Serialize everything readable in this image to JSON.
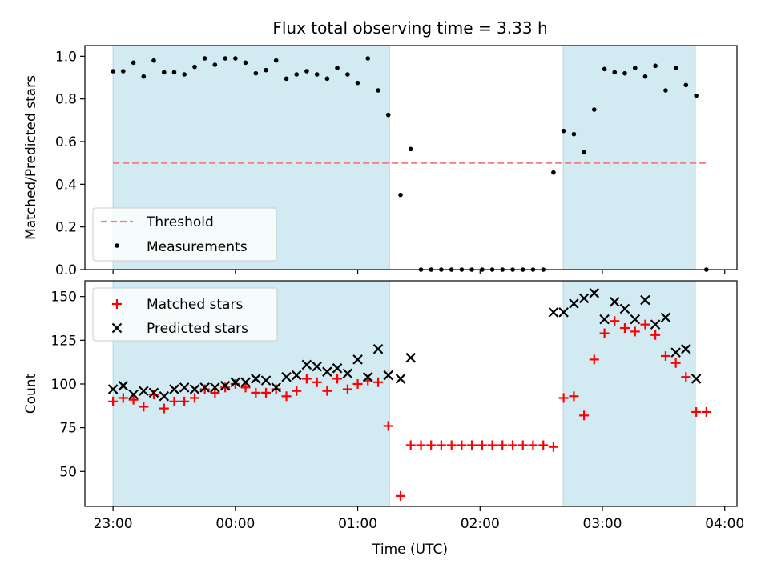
{
  "title": "Flux total observing time = 3.33 h",
  "xlabel": "Time (UTC)",
  "x_unit": "hours relative to 00:00 UTC",
  "xticks": [
    {
      "value": -1,
      "label": "23:00"
    },
    {
      "value": 0,
      "label": "00:00"
    },
    {
      "value": 1,
      "label": "01:00"
    },
    {
      "value": 2,
      "label": "02:00"
    },
    {
      "value": 3,
      "label": "03:00"
    },
    {
      "value": 4,
      "label": "04:00"
    }
  ],
  "xlim": [
    -1.23,
    4.1
  ],
  "shaded_intervals": [
    [
      -1.0,
      1.26
    ],
    [
      2.68,
      3.76
    ]
  ],
  "colors": {
    "shade": "#add8e6",
    "threshold": "#f08080",
    "measurement": "#000000",
    "matched": "#ff0000",
    "predicted": "#000000"
  },
  "chart_data": [
    {
      "type": "scatter",
      "ylabel": "Matched/Predicted stars",
      "ylim": [
        0,
        1.05
      ],
      "yticks": [
        {
          "value": 0.0,
          "label": "0.0"
        },
        {
          "value": 0.2,
          "label": "0.2"
        },
        {
          "value": 0.4,
          "label": "0.4"
        },
        {
          "value": 0.6,
          "label": "0.6"
        },
        {
          "value": 0.8,
          "label": "0.8"
        },
        {
          "value": 1.0,
          "label": "1.0"
        }
      ],
      "legend_position": "lower-left",
      "threshold": {
        "name": "Threshold",
        "value": 0.5,
        "x_range": [
          -1.0,
          3.85
        ]
      },
      "series": [
        {
          "name": "Measurements",
          "x": [
            -1.0,
            -0.917,
            -0.833,
            -0.75,
            -0.667,
            -0.583,
            -0.5,
            -0.417,
            -0.333,
            -0.25,
            -0.167,
            -0.083,
            0.0,
            0.083,
            0.167,
            0.25,
            0.333,
            0.417,
            0.5,
            0.583,
            0.667,
            0.75,
            0.833,
            0.917,
            1.0,
            1.083,
            1.167,
            1.25,
            1.35,
            1.433,
            1.517,
            1.6,
            1.683,
            1.767,
            1.85,
            1.933,
            2.017,
            2.1,
            2.183,
            2.267,
            2.35,
            2.433,
            2.517,
            2.6,
            2.683,
            2.767,
            2.85,
            2.933,
            3.017,
            3.1,
            3.183,
            3.267,
            3.35,
            3.433,
            3.517,
            3.6,
            3.683,
            3.767,
            3.85
          ],
          "y": [
            0.93,
            0.93,
            0.97,
            0.905,
            0.98,
            0.925,
            0.925,
            0.915,
            0.95,
            0.99,
            0.96,
            0.99,
            0.99,
            0.97,
            0.92,
            0.935,
            0.98,
            0.895,
            0.915,
            0.93,
            0.915,
            0.895,
            0.945,
            0.915,
            0.875,
            0.99,
            0.84,
            0.725,
            0.35,
            0.565,
            0.0,
            0.0,
            0.0,
            0.0,
            0.0,
            0.0,
            0.0,
            0.0,
            0.0,
            0.0,
            0.0,
            0.0,
            0.0,
            0.455,
            0.65,
            0.635,
            0.55,
            0.75,
            0.94,
            0.925,
            0.92,
            0.945,
            0.905,
            0.955,
            0.84,
            0.945,
            0.865,
            0.815,
            0.0
          ]
        }
      ]
    },
    {
      "type": "scatter",
      "ylabel": "Count",
      "ylim": [
        30,
        159
      ],
      "yticks": [
        {
          "value": 50,
          "label": "50"
        },
        {
          "value": 75,
          "label": "75"
        },
        {
          "value": 100,
          "label": "100"
        },
        {
          "value": 125,
          "label": "125"
        },
        {
          "value": 150,
          "label": "150"
        }
      ],
      "legend_position": "upper-left",
      "series": [
        {
          "name": "Matched stars",
          "marker": "plus",
          "x": [
            -1.0,
            -0.917,
            -0.833,
            -0.75,
            -0.667,
            -0.583,
            -0.5,
            -0.417,
            -0.333,
            -0.25,
            -0.167,
            -0.083,
            0.0,
            0.083,
            0.167,
            0.25,
            0.333,
            0.417,
            0.5,
            0.583,
            0.667,
            0.75,
            0.833,
            0.917,
            1.0,
            1.083,
            1.167,
            1.25,
            1.35,
            1.433,
            1.517,
            1.6,
            1.683,
            1.767,
            1.85,
            1.933,
            2.017,
            2.1,
            2.183,
            2.267,
            2.35,
            2.433,
            2.517,
            2.6,
            2.683,
            2.767,
            2.85,
            2.933,
            3.017,
            3.1,
            3.183,
            3.267,
            3.35,
            3.433,
            3.517,
            3.6,
            3.683,
            3.767,
            3.85
          ],
          "y": [
            90,
            92,
            91,
            87,
            94,
            86,
            90,
            90,
            92,
            97,
            95,
            98,
            100,
            98,
            95,
            95,
            97,
            93,
            96,
            103,
            101,
            96,
            103,
            97,
            100,
            102,
            101,
            76,
            36,
            65,
            65,
            65,
            65,
            65,
            65,
            65,
            65,
            65,
            65,
            65,
            65,
            65,
            65,
            64,
            92,
            93,
            82,
            114,
            129,
            136,
            132,
            130,
            134,
            128,
            116,
            112,
            104,
            84,
            84
          ]
        },
        {
          "name": "Predicted stars",
          "marker": "x",
          "x": [
            -1.0,
            -0.917,
            -0.833,
            -0.75,
            -0.667,
            -0.583,
            -0.5,
            -0.417,
            -0.333,
            -0.25,
            -0.167,
            -0.083,
            0.0,
            0.083,
            0.167,
            0.25,
            0.333,
            0.417,
            0.5,
            0.583,
            0.667,
            0.75,
            0.833,
            0.917,
            1.0,
            1.083,
            1.167,
            1.25,
            1.35,
            1.433,
            2.6,
            2.683,
            2.767,
            2.85,
            2.933,
            3.017,
            3.1,
            3.183,
            3.267,
            3.35,
            3.433,
            3.517,
            3.6,
            3.683,
            3.767
          ],
          "y": [
            97,
            99,
            94,
            96,
            95,
            93,
            97,
            98,
            97,
            98,
            98,
            99,
            101,
            101,
            103,
            102,
            98,
            104,
            105,
            111,
            110,
            107,
            109,
            106,
            114,
            104,
            120,
            105,
            103,
            115,
            141,
            141,
            146,
            149,
            152,
            137,
            147,
            143,
            137,
            148,
            134,
            138,
            118,
            120,
            103
          ]
        }
      ]
    }
  ]
}
